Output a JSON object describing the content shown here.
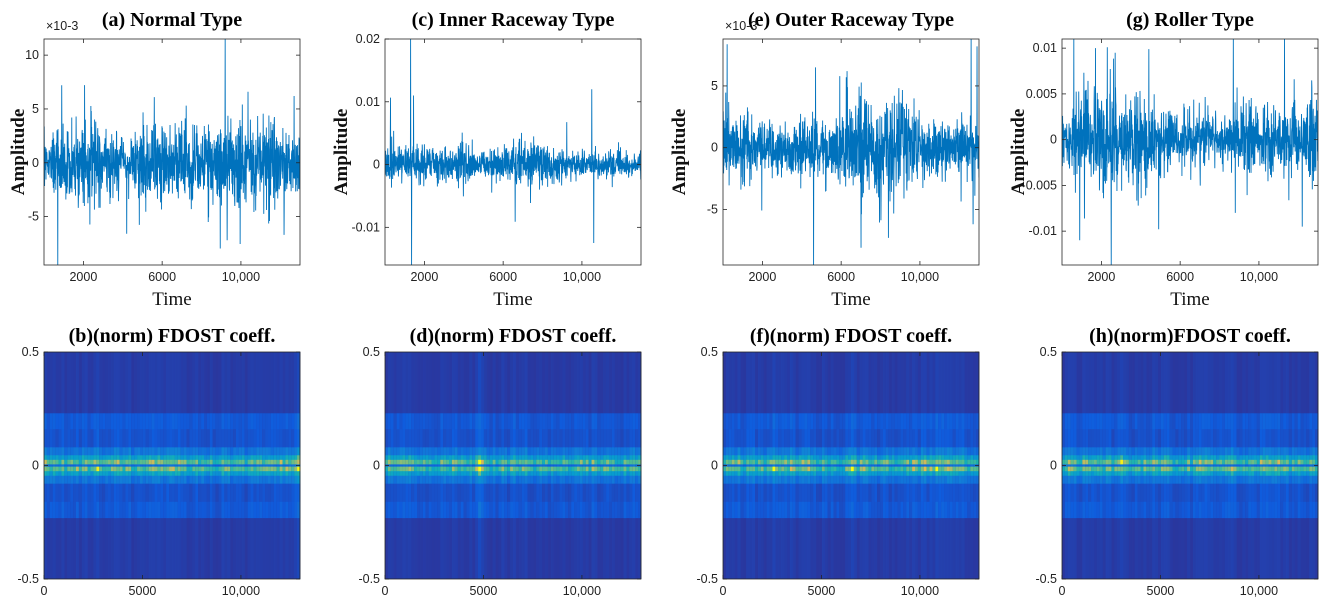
{
  "chart_data": [
    {
      "id": "a",
      "type": "line",
      "title": "(a) Normal Type",
      "xlabel": "Time",
      "ylabel": "Amplitude",
      "y_exponent": "×10-3",
      "xlim": [
        0,
        13000
      ],
      "ylim": [
        -0.0095,
        0.0115
      ],
      "xticks": [
        2000,
        6000,
        10000
      ],
      "xtick_labels": [
        "2000",
        "6000",
        "10,000"
      ],
      "yticks": [
        -0.005,
        0,
        0.005,
        0.01
      ],
      "ytick_labels": [
        "-5",
        "0",
        "5",
        "10"
      ],
      "color": "#0072BD",
      "base_amplitude": 0.0022,
      "spikes": [
        [
          700,
          -0.0095
        ],
        [
          900,
          0.0072
        ],
        [
          4200,
          -0.0066
        ],
        [
          5600,
          0.0061
        ],
        [
          9200,
          0.0115
        ],
        [
          9300,
          -0.0072
        ],
        [
          12700,
          0.0062
        ]
      ]
    },
    {
      "id": "c",
      "type": "line",
      "title": "(c) Inner Raceway Type",
      "xlabel": "Time",
      "ylabel": "Amplitude",
      "y_exponent": "",
      "xlim": [
        0,
        13000
      ],
      "ylim": [
        -0.016,
        0.02
      ],
      "xticks": [
        2000,
        6000,
        10000
      ],
      "xtick_labels": [
        "2000",
        "6000",
        "10,000"
      ],
      "yticks": [
        -0.01,
        0,
        0.01,
        0.02
      ],
      "ytick_labels": [
        "-0.01",
        "0",
        "0.01",
        "0.02"
      ],
      "color": "#0072BD",
      "base_amplitude": 0.0025,
      "spikes": [
        [
          1300,
          0.02
        ],
        [
          1350,
          -0.016
        ],
        [
          1450,
          0.011
        ],
        [
          10500,
          0.012
        ],
        [
          10600,
          -0.0125
        ]
      ]
    },
    {
      "id": "e",
      "type": "line",
      "title": "(e) Outer Raceway Type",
      "xlabel": "Time",
      "ylabel": "Amplitude",
      "y_exponent": "×10-3",
      "xlim": [
        0,
        13000
      ],
      "ylim": [
        -0.0095,
        0.0088
      ],
      "xticks": [
        2000,
        6000,
        10000
      ],
      "xtick_labels": [
        "2000",
        "6000",
        "10,000"
      ],
      "yticks": [
        -0.005,
        0,
        0.005
      ],
      "ytick_labels": [
        "-5",
        "0",
        "5"
      ],
      "color": "#0072BD",
      "base_amplitude": 0.0026,
      "spikes": [
        [
          4600,
          -0.0095
        ],
        [
          4700,
          0.0065
        ],
        [
          6300,
          0.0062
        ],
        [
          12600,
          0.0088
        ],
        [
          12700,
          -0.0062
        ],
        [
          12900,
          0.0082
        ]
      ]
    },
    {
      "id": "g",
      "type": "line",
      "title": "(g) Roller Type",
      "xlabel": "Time",
      "ylabel": "Amplitude",
      "y_exponent": "",
      "xlim": [
        0,
        13000
      ],
      "ylim": [
        -0.0137,
        0.011
      ],
      "xticks": [
        2000,
        6000,
        10000
      ],
      "xtick_labels": [
        "2000",
        "6000",
        "10,000"
      ],
      "yticks": [
        -0.01,
        -0.005,
        0,
        0.005,
        0.01
      ],
      "ytick_labels": [
        "-0.01",
        "-0.005",
        "0",
        "0.005",
        "0.01"
      ],
      "color": "#0072BD",
      "base_amplitude": 0.0032,
      "spikes": [
        [
          600,
          0.011
        ],
        [
          900,
          -0.011
        ],
        [
          1700,
          0.01
        ],
        [
          2500,
          -0.0137
        ],
        [
          2700,
          0.0095
        ],
        [
          8700,
          0.011
        ],
        [
          8800,
          -0.008
        ],
        [
          11300,
          0.011
        ],
        [
          12200,
          -0.0095
        ]
      ]
    },
    {
      "id": "b",
      "type": "heatmap",
      "title": "(b)(norm) FDOST coeff.",
      "xlim": [
        0,
        13000
      ],
      "ylim": [
        -0.5,
        0.5
      ],
      "xticks": [
        0,
        5000,
        10000
      ],
      "xtick_labels": [
        "0",
        "5000",
        "10,000"
      ],
      "yticks": [
        -0.5,
        0,
        0.5
      ],
      "ytick_labels": [
        "-0.5",
        "0",
        "0.5"
      ],
      "colormap": "parula",
      "hotspots": [
        [
          2700,
          0.75
        ],
        [
          4800,
          0.45
        ],
        [
          6200,
          0.5
        ],
        [
          7600,
          0.45
        ],
        [
          9300,
          0.55
        ],
        [
          10800,
          0.6
        ],
        [
          11800,
          0.55
        ],
        [
          12900,
          0.95
        ]
      ]
    },
    {
      "id": "d",
      "type": "heatmap",
      "title": "(d)(norm) FDOST coeff.",
      "xlim": [
        0,
        13000
      ],
      "ylim": [
        -0.5,
        0.5
      ],
      "xticks": [
        0,
        5000,
        10000
      ],
      "xtick_labels": [
        "0",
        "5000",
        "10,000"
      ],
      "yticks": [
        -0.5,
        0,
        0.5
      ],
      "ytick_labels": [
        "-0.5",
        "0",
        "0.5"
      ],
      "colormap": "parula",
      "hotspots": [
        [
          4800,
          1.0
        ],
        [
          4950,
          0.7
        ],
        [
          3400,
          0.35
        ],
        [
          12700,
          0.45
        ]
      ]
    },
    {
      "id": "f",
      "type": "heatmap",
      "title": "(f)(norm) FDOST coeff.",
      "xlim": [
        0,
        13000
      ],
      "ylim": [
        -0.5,
        0.5
      ],
      "xticks": [
        0,
        5000,
        10000
      ],
      "xtick_labels": [
        "0",
        "5000",
        "10,000"
      ],
      "yticks": [
        -0.5,
        0,
        0.5
      ],
      "ytick_labels": [
        "-0.5",
        "0",
        "0.5"
      ],
      "colormap": "parula",
      "hotspots": [
        [
          1300,
          0.55
        ],
        [
          2600,
          0.75
        ],
        [
          3500,
          0.7
        ],
        [
          4400,
          0.55
        ],
        [
          6600,
          0.8
        ],
        [
          7300,
          0.6
        ],
        [
          8300,
          0.55
        ],
        [
          10200,
          0.75
        ],
        [
          10900,
          0.8
        ],
        [
          11500,
          0.65
        ]
      ]
    },
    {
      "id": "h",
      "type": "heatmap",
      "title": "(h)(norm)FDOST coeff.",
      "xlim": [
        0,
        13000
      ],
      "ylim": [
        -0.5,
        0.5
      ],
      "xticks": [
        0,
        5000,
        10000
      ],
      "xtick_labels": [
        "0",
        "5000",
        "10,000"
      ],
      "yticks": [
        -0.5,
        0,
        0.5
      ],
      "ytick_labels": [
        "-0.5",
        "0",
        "0.5"
      ],
      "colormap": "parula",
      "hotspots": [
        [
          1200,
          0.6
        ],
        [
          1900,
          0.55
        ],
        [
          3000,
          0.75
        ],
        [
          4200,
          0.5
        ],
        [
          5400,
          0.55
        ],
        [
          6900,
          0.6
        ],
        [
          8600,
          0.75
        ],
        [
          9700,
          0.5
        ],
        [
          11300,
          0.5
        ]
      ]
    }
  ]
}
